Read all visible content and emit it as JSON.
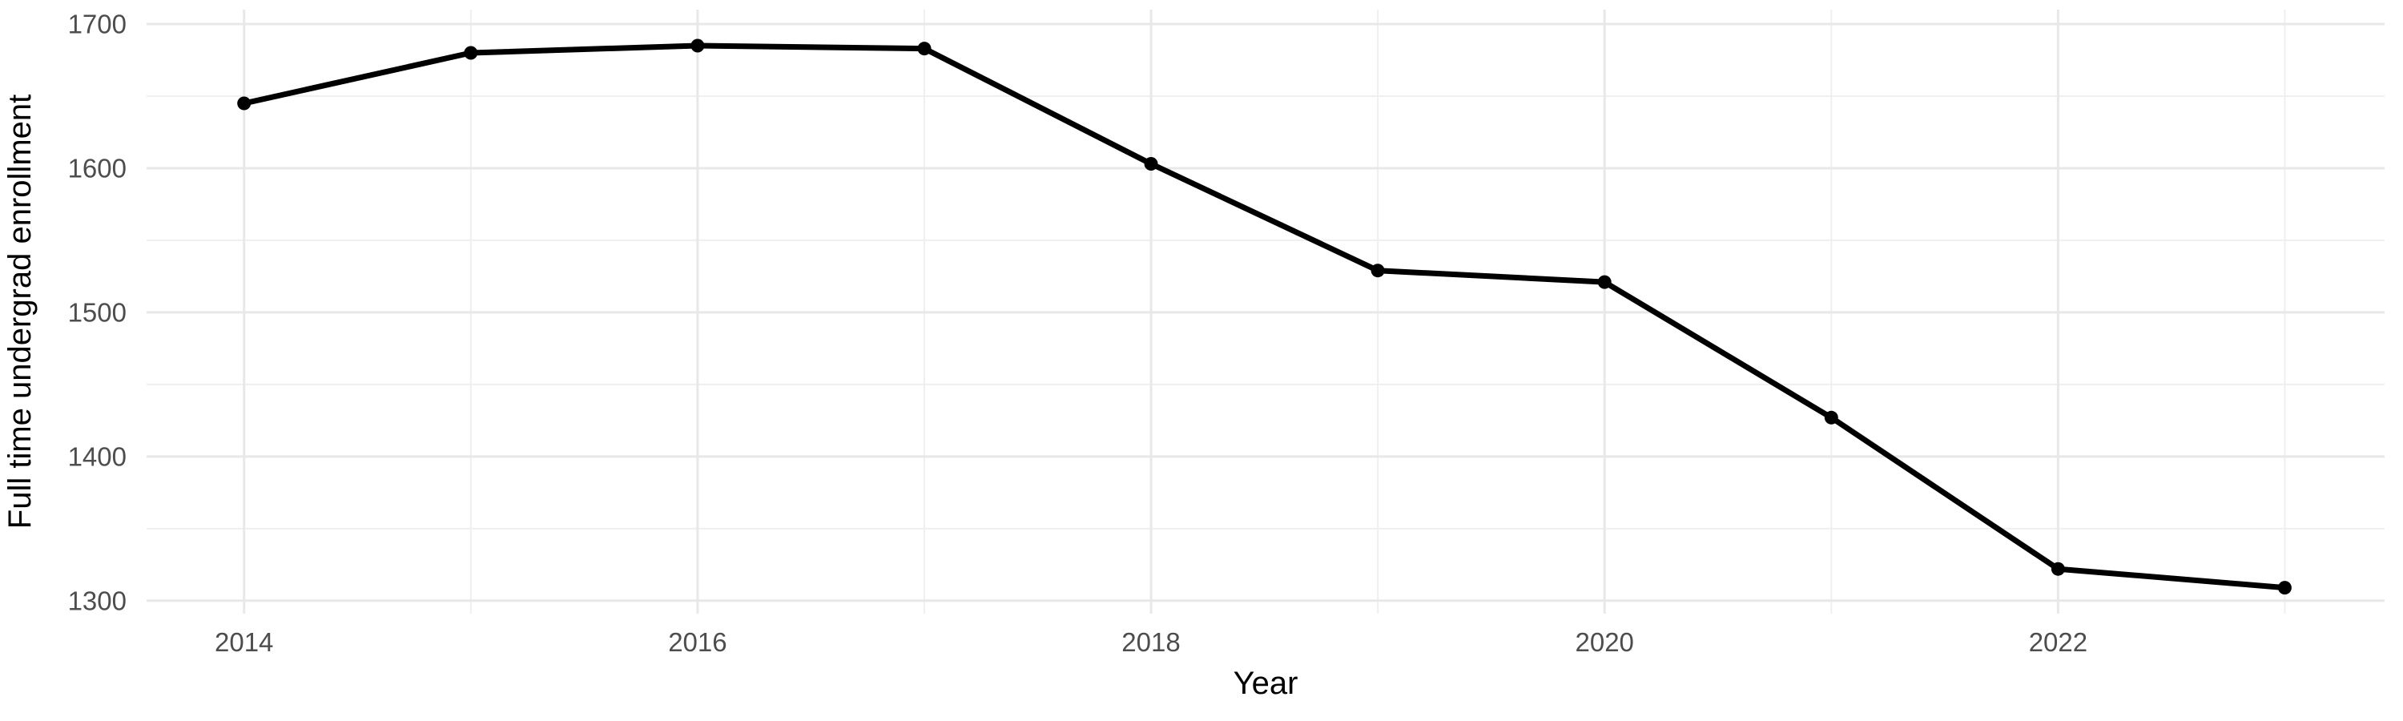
{
  "chart_data": {
    "type": "line",
    "title": "",
    "xlabel": "Year",
    "ylabel": "Full time undergrad enrollment",
    "x": [
      2014,
      2015,
      2016,
      2017,
      2018,
      2019,
      2020,
      2021,
      2022,
      2023
    ],
    "series": [
      {
        "name": "Full time undergrad enrollment",
        "values": [
          1645,
          1680,
          1685,
          1683,
          1603,
          1529,
          1521,
          1427,
          1322,
          1309
        ]
      }
    ],
    "x_major_ticks": [
      2014,
      2016,
      2018,
      2020,
      2022
    ],
    "x_major_tick_labels": [
      "2014",
      "2016",
      "2018",
      "2020",
      "2022"
    ],
    "x_minor_ticks": [
      2015,
      2017,
      2019,
      2021,
      2023
    ],
    "y_major_ticks": [
      1300,
      1400,
      1500,
      1600,
      1700
    ],
    "y_major_tick_labels": [
      "1300",
      "1400",
      "1500",
      "1600",
      "1700"
    ],
    "y_minor_ticks": [
      1350,
      1450,
      1550,
      1650
    ],
    "xlim": [
      2013.57,
      2023.44
    ],
    "ylim": [
      1291,
      1710
    ],
    "grid": true,
    "legend": false,
    "marker": "circle",
    "style": {
      "line_color": "#000000",
      "point_color": "#000000",
      "grid_major_color": "#e8e8e8",
      "grid_minor_color": "#efefef",
      "tick_label_color": "#4d4d4d",
      "axis_title_color": "#000000",
      "background": "#ffffff"
    }
  }
}
